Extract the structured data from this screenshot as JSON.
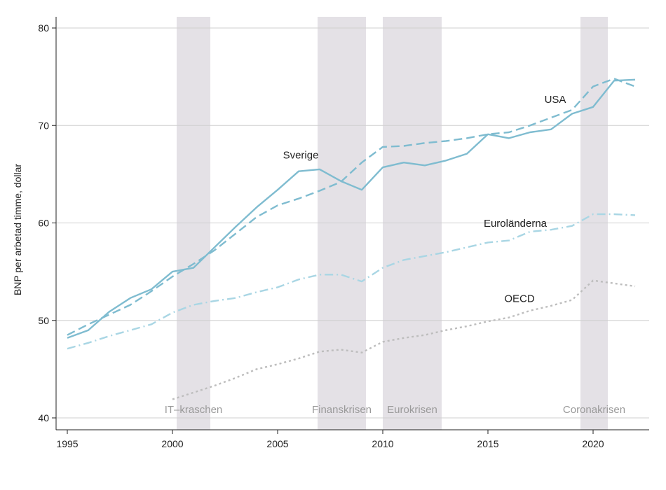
{
  "chart_data": {
    "type": "line",
    "title": "",
    "xlabel": "",
    "ylabel": "BNP per arbetad timme, dollar",
    "xlim": [
      1995,
      2022
    ],
    "ylim": [
      40,
      80
    ],
    "yticks": [
      40,
      50,
      60,
      70,
      80
    ],
    "xticks": [
      1995,
      2000,
      2005,
      2010,
      2015,
      2020
    ],
    "grid": true,
    "colors": {
      "sverige": "#7fbcd0",
      "usa": "#7fbcd0",
      "euro": "#a9d6e4",
      "oecd": "#bdbdbd",
      "band": "#e4e1e6",
      "grid": "#cfcfcf",
      "axis": "#222222"
    },
    "shaded_periods": [
      {
        "label": "IT–kraschen",
        "start": 2000.2,
        "end": 2001.8
      },
      {
        "label": "Finanskrisen",
        "start": 2006.9,
        "end": 2009.2
      },
      {
        "label": "Eurokrisen",
        "start": 2010.0,
        "end": 2012.8
      },
      {
        "label": "Coronakrisen",
        "start": 2019.4,
        "end": 2020.7
      }
    ],
    "series": [
      {
        "name": "Sverige",
        "style": "solid",
        "x": [
          1995,
          1996,
          1997,
          1998,
          1999,
          2000,
          2001,
          2002,
          2003,
          2004,
          2005,
          2006,
          2007,
          2008,
          2009,
          2010,
          2011,
          2012,
          2013,
          2014,
          2015,
          2016,
          2017,
          2018,
          2019,
          2020,
          2021,
          2022
        ],
        "values": [
          48.2,
          49.0,
          50.9,
          52.3,
          53.2,
          55.0,
          55.4,
          57.5,
          59.6,
          61.6,
          63.4,
          65.3,
          65.5,
          64.3,
          63.4,
          65.7,
          66.2,
          65.9,
          66.4,
          67.1,
          69.1,
          68.7,
          69.3,
          69.6,
          71.2,
          71.9,
          74.6,
          74.7
        ]
      },
      {
        "name": "USA",
        "style": "dashed",
        "x": [
          1995,
          1996,
          1997,
          1998,
          1999,
          2000,
          2001,
          2002,
          2003,
          2004,
          2005,
          2006,
          2007,
          2008,
          2009,
          2010,
          2011,
          2012,
          2013,
          2014,
          2015,
          2016,
          2017,
          2018,
          2019,
          2020,
          2021,
          2022
        ],
        "values": [
          48.5,
          49.6,
          50.6,
          51.6,
          53.0,
          54.5,
          55.8,
          57.2,
          58.9,
          60.6,
          61.8,
          62.5,
          63.3,
          64.2,
          66.2,
          67.8,
          67.9,
          68.2,
          68.4,
          68.7,
          69.1,
          69.3,
          70.0,
          70.8,
          71.6,
          74.0,
          74.8,
          74.0
        ]
      },
      {
        "name": "Euroländerna",
        "style": "dashdot",
        "x": [
          1995,
          1996,
          1997,
          1998,
          1999,
          2000,
          2001,
          2002,
          2003,
          2004,
          2005,
          2006,
          2007,
          2008,
          2009,
          2010,
          2011,
          2012,
          2013,
          2014,
          2015,
          2016,
          2017,
          2018,
          2019,
          2020,
          2021,
          2022
        ],
        "values": [
          47.1,
          47.7,
          48.4,
          49.0,
          49.6,
          50.8,
          51.6,
          52.0,
          52.3,
          52.9,
          53.4,
          54.2,
          54.7,
          54.7,
          54.0,
          55.4,
          56.2,
          56.6,
          57.0,
          57.5,
          58.0,
          58.2,
          59.1,
          59.3,
          59.7,
          60.9,
          60.9,
          60.8
        ]
      },
      {
        "name": "OECD",
        "style": "dotted",
        "x": [
          2000,
          2001,
          2002,
          2003,
          2004,
          2005,
          2006,
          2007,
          2008,
          2009,
          2010,
          2011,
          2012,
          2013,
          2014,
          2015,
          2016,
          2017,
          2018,
          2019,
          2020,
          2021,
          2022
        ],
        "values": [
          41.9,
          42.6,
          43.3,
          44.1,
          45.0,
          45.5,
          46.1,
          46.8,
          47.0,
          46.7,
          47.8,
          48.2,
          48.5,
          49.0,
          49.4,
          49.9,
          50.3,
          51.0,
          51.5,
          52.1,
          54.1,
          53.8,
          53.5
        ]
      }
    ],
    "series_labels": [
      {
        "text": "Sverige",
        "x": 2006.1,
        "y": 66.6
      },
      {
        "text": "USA",
        "x": 2018.2,
        "y": 72.3
      },
      {
        "text": "Euroländerna",
        "x": 2016.3,
        "y": 59.6
      },
      {
        "text": "OECD",
        "x": 2016.5,
        "y": 51.9
      }
    ]
  }
}
